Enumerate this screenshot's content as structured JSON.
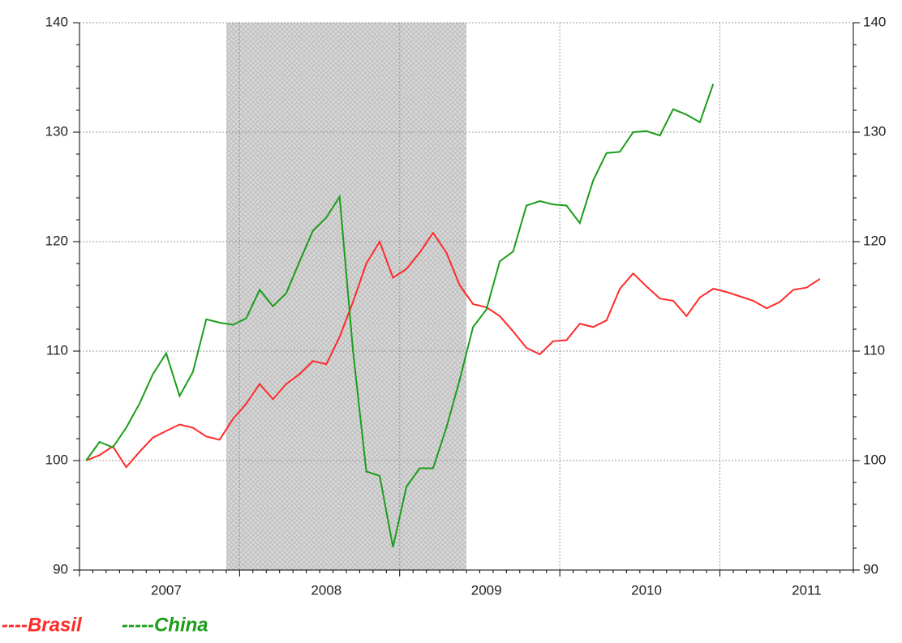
{
  "chart_data": {
    "type": "line",
    "categories": [
      null,
      null,
      null,
      null,
      null,
      null,
      "2007",
      null,
      null,
      null,
      null,
      null,
      null,
      null,
      null,
      null,
      null,
      null,
      "2008",
      null,
      null,
      null,
      null,
      null,
      null,
      null,
      null,
      null,
      null,
      null,
      "2009",
      null,
      null,
      null,
      null,
      null,
      null,
      null,
      null,
      null,
      null,
      null,
      "2010",
      null,
      null,
      null,
      null,
      null,
      null,
      null,
      null,
      null,
      null,
      null,
      "2011",
      null,
      null,
      null
    ],
    "series": [
      {
        "name": "----Brasil",
        "color": "#ff2a2a",
        "values": [
          100,
          100.5,
          101.3,
          99.4,
          100.8,
          102.1,
          102.7,
          103.3,
          103.0,
          102.2,
          101.9,
          103.8,
          105.2,
          107.0,
          105.6,
          107.0,
          107.9,
          109.1,
          108.8,
          111.3,
          114.5,
          118.0,
          120.0,
          116.7,
          117.5,
          119.0,
          120.8,
          119.0,
          116.0,
          114.3,
          114.0,
          113.2,
          111.8,
          110.3,
          109.7,
          110.9,
          111.0,
          112.5,
          112.2,
          112.8,
          115.7,
          117.1,
          115.9,
          114.8,
          114.6,
          113.2,
          114.9,
          115.7,
          115.4,
          115.0,
          114.6,
          113.9,
          114.5,
          115.6,
          115.8,
          116.6,
          null,
          null
        ]
      },
      {
        "name": "-----China",
        "color": "#1a9e1a",
        "values": [
          100,
          101.7,
          101.2,
          103.0,
          105.2,
          107.9,
          109.8,
          105.9,
          108.1,
          112.9,
          112.6,
          112.4,
          113.0,
          115.6,
          114.1,
          115.3,
          118.2,
          121.0,
          122.2,
          124.1,
          110,
          99.0,
          98.6,
          92.1,
          97.6,
          99.3,
          99.3,
          103.0,
          107.4,
          112.2,
          113.8,
          118.2,
          119.1,
          123.3,
          123.7,
          123.4,
          123.3,
          121.7,
          125.6,
          128.1,
          128.2,
          130.0,
          130.1,
          129.7,
          132.1,
          131.6,
          130.9,
          134.4,
          null,
          null,
          null,
          null,
          null,
          null,
          null,
          null,
          null,
          null
        ]
      }
    ],
    "ylim": [
      90,
      140
    ],
    "yticks": [
      90,
      100,
      110,
      120,
      130,
      140
    ],
    "y2lim": [
      90,
      140
    ],
    "y2ticks": [
      90,
      100,
      110,
      120,
      130,
      140
    ],
    "shaded": {
      "start": 11,
      "end": 29
    },
    "grid": true
  }
}
